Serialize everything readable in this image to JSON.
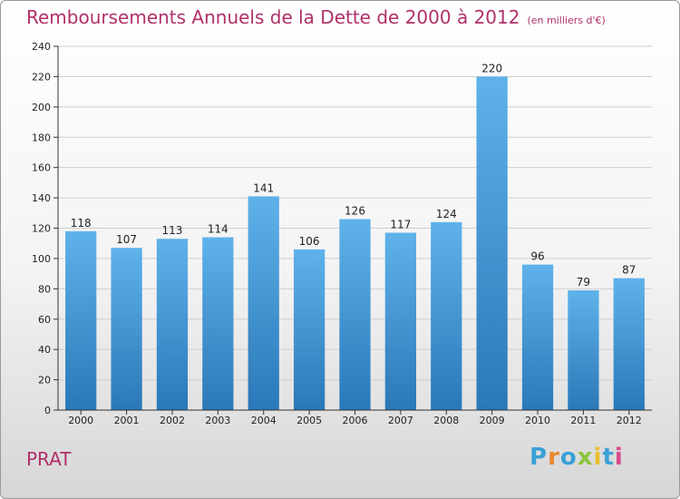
{
  "title": "Remboursements Annuels de la Dette de 2000 à 2012",
  "unit_note": "(en milliers d'€)",
  "commune": "PRAT",
  "brand": {
    "letters": [
      "P",
      "r",
      "o",
      "x",
      "i",
      "t",
      "i"
    ],
    "colors": [
      "#3aa0d8",
      "#e8892c",
      "#3aa0d8",
      "#8cc43c",
      "#e8c02c",
      "#3aa0d8",
      "#d84a8c"
    ]
  },
  "colors": {
    "bar_top": "#5fb2ea",
    "bar_bottom": "#2a78b8",
    "title": "#b0306a"
  },
  "chart_data": {
    "type": "bar",
    "categories": [
      "2000",
      "2001",
      "2002",
      "2003",
      "2004",
      "2005",
      "2006",
      "2007",
      "2008",
      "2009",
      "2010",
      "2011",
      "2012"
    ],
    "values": [
      118,
      107,
      113,
      114,
      141,
      106,
      126,
      117,
      124,
      220,
      96,
      79,
      87
    ],
    "title": "Remboursements Annuels de la Dette de 2000 à 2012",
    "ylim": [
      0,
      240
    ],
    "yticks": [
      0,
      20,
      40,
      60,
      80,
      100,
      120,
      140,
      160,
      180,
      200,
      220,
      240
    ],
    "grid": true
  }
}
